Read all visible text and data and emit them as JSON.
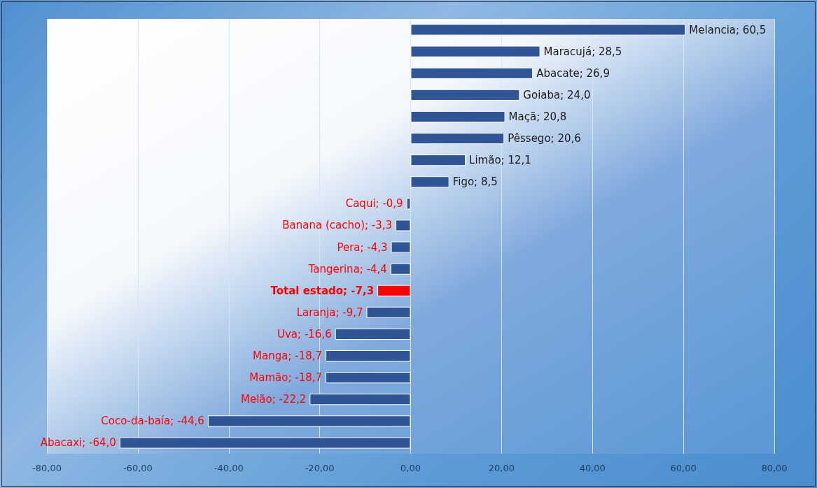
{
  "chart_data": {
    "type": "bar",
    "orientation": "horizontal",
    "tick_labels": "x",
    "grid": "x",
    "categories": [
      null,
      null,
      null,
      null,
      null,
      null,
      null,
      null,
      null,
      null,
      null,
      null,
      null,
      null,
      null,
      null,
      null,
      null,
      null,
      null
    ],
    "values": [
      60.5,
      28.5,
      26.9,
      24.0,
      20.8,
      20.6,
      12.1,
      8.5,
      -0.9,
      -3.3,
      -4.3,
      -4.4,
      -7.3,
      -9.7,
      -16.6,
      -18.7,
      -18.7,
      -22.2,
      -44.6,
      -64.0
    ],
    "value_labels": [
      "Melancia; 60,5",
      "Maracujá; 28,5",
      "Abacate; 26,9",
      "Goiaba; 24,0",
      "Maçã; 20,8",
      "Pêssego; 20,6",
      "Limão; 12,1",
      "Figo; 8,5",
      "Caqui; -0,9",
      "Banana (cacho); -3,3",
      "Pera; -4,3",
      "Tangerina; -4,4",
      "Total estado; -7,3",
      "Laranja; -9,7",
      "Uva; -16,6",
      "Manga; -18,7",
      "Mamão; -18,7",
      "Melão; -22,2",
      "Coco-da-baía; -44,6",
      "Abacaxi; -64,0"
    ],
    "colors": [
      "#2f5597",
      "#2f5597",
      "#2f5597",
      "#2f5597",
      "#2f5597",
      "#2f5597",
      "#2f5597",
      "#2f5597",
      "#2f5597",
      "#2f5597",
      "#2f5597",
      "#2f5597",
      "#ff0000",
      "#2f5597",
      "#2f5597",
      "#2f5597",
      "#2f5597",
      "#2f5597",
      "#2f5597",
      "#2f5597"
    ],
    "xlim": [
      -80,
      80
    ],
    "xticks": [
      {
        "value": -80,
        "label": "-80,00"
      },
      {
        "value": -60,
        "label": "-60,00"
      },
      {
        "value": -40,
        "label": "-40,00"
      },
      {
        "value": -20,
        "label": "-20,00"
      },
      {
        "value": 0,
        "label": "0,00"
      },
      {
        "value": 20,
        "label": "20,00"
      },
      {
        "value": 40,
        "label": "40,00"
      },
      {
        "value": 60,
        "label": "60,00"
      },
      {
        "value": 80,
        "label": "80,00"
      }
    ]
  }
}
